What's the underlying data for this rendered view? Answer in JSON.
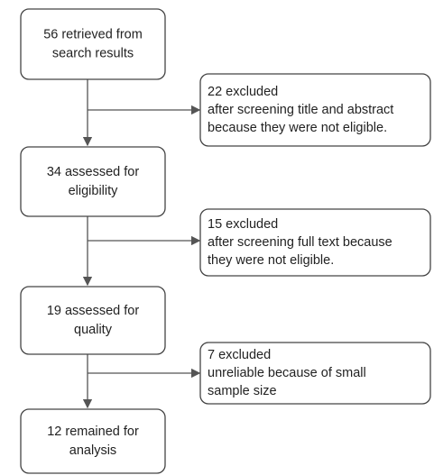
{
  "nodes": [
    {
      "lines": [
        "56 retrieved from",
        "search results"
      ]
    },
    {
      "lines": [
        "34 assessed for",
        "eligibility"
      ]
    },
    {
      "lines": [
        "19 assessed for",
        "quality"
      ]
    },
    {
      "lines": [
        "12 remained for",
        "analysis"
      ]
    }
  ],
  "exclusions": [
    {
      "lines": [
        "22 excluded",
        "after screening title and abstract",
        "because they were not eligible."
      ]
    },
    {
      "lines": [
        "15 excluded",
        "after screening full text because",
        "they were not eligible."
      ]
    },
    {
      "lines": [
        "7 excluded",
        "unreliable because of small",
        "sample size"
      ]
    }
  ]
}
